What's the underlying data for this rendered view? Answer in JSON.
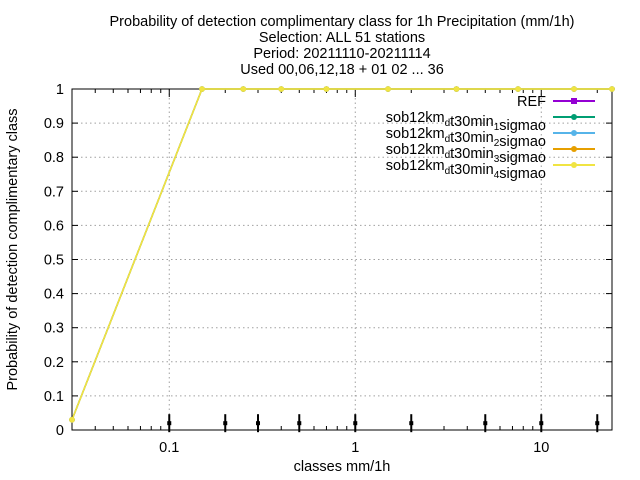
{
  "title_lines": [
    "Probability of detection complimentary class  for 1h Precipitation (mm/1h)",
    "Selection: ALL     51 stations",
    "Period: 20211110-20211114",
    "Used 00,06,12,18 + 01 02 ... 36"
  ],
  "chart_data": {
    "type": "line",
    "xlabel": "classes mm/1h",
    "ylabel": "Probability of detection complimentary class",
    "x_scale": "log",
    "xlim": [
      0.03,
      24
    ],
    "ylim": [
      0,
      1
    ],
    "grid": true,
    "legend_position": "top-right",
    "x_tick_labels": [
      {
        "value": 0.1,
        "label": "0.1"
      },
      {
        "value": 1,
        "label": "1"
      },
      {
        "value": 10,
        "label": "10"
      }
    ],
    "y_tick_labels": [
      "0",
      "0.1",
      "0.2",
      "0.3",
      "0.4",
      "0.5",
      "0.6",
      "0.7",
      "0.8",
      "0.9",
      "1"
    ],
    "y_ticks": [
      0,
      0.1,
      0.2,
      0.3,
      0.4,
      0.5,
      0.6,
      0.7,
      0.8,
      0.9,
      1
    ],
    "series": [
      {
        "name": "REF",
        "name_parts": [
          [
            "REF",
            ""
          ]
        ],
        "color": "#9400d3",
        "marker": "square",
        "x": [],
        "y": []
      },
      {
        "name": "sob12km_dt30min_1sigmao",
        "name_parts": [
          [
            "sob12km",
            ""
          ],
          [
            "d",
            "sub"
          ],
          [
            "t30min",
            ""
          ],
          [
            "1",
            "sub"
          ],
          [
            "sigmao",
            ""
          ]
        ],
        "color": "#009e73",
        "marker": "circle",
        "x": [
          0.03,
          0.15,
          0.25,
          0.4,
          0.7,
          1.5,
          3.5,
          7.5,
          15,
          24
        ],
        "y": [
          0.03,
          1,
          1,
          1,
          1,
          1,
          1,
          1,
          1,
          1
        ]
      },
      {
        "name": "sob12km_dt30min_2sigmao",
        "name_parts": [
          [
            "sob12km",
            ""
          ],
          [
            "d",
            "sub"
          ],
          [
            "t30min",
            ""
          ],
          [
            "2",
            "sub"
          ],
          [
            "sigmao",
            ""
          ]
        ],
        "color": "#56b4e9",
        "marker": "circle",
        "x": [
          0.03,
          0.15,
          0.25,
          0.4,
          0.7,
          1.5,
          3.5,
          7.5,
          15,
          24
        ],
        "y": [
          0.03,
          1,
          1,
          1,
          1,
          1,
          1,
          1,
          1,
          1
        ]
      },
      {
        "name": "sob12km_dt30min_3sigmao",
        "name_parts": [
          [
            "sob12km",
            ""
          ],
          [
            "d",
            "sub"
          ],
          [
            "t30min",
            ""
          ],
          [
            "3",
            "sub"
          ],
          [
            "sigmao",
            ""
          ]
        ],
        "color": "#e69f00",
        "marker": "circle",
        "x": [
          0.03,
          0.15,
          0.25,
          0.4,
          0.7,
          1.5,
          3.5,
          7.5,
          15,
          24
        ],
        "y": [
          0.03,
          1,
          1,
          1,
          1,
          1,
          1,
          1,
          1,
          1
        ]
      },
      {
        "name": "sob12km_dt30min_4sigmao",
        "name_parts": [
          [
            "sob12km",
            ""
          ],
          [
            "d",
            "sub"
          ],
          [
            "t30min",
            ""
          ],
          [
            "4",
            "sub"
          ],
          [
            "sigmao",
            ""
          ]
        ],
        "color": "#f0e442",
        "marker": "circle",
        "x": [
          0.03,
          0.15,
          0.25,
          0.4,
          0.7,
          1.5,
          3.5,
          7.5,
          15,
          24
        ],
        "y": [
          0.03,
          1,
          1,
          1,
          1,
          1,
          1,
          1,
          1,
          1
        ]
      }
    ],
    "class_markers_x": [
      0.1,
      0.2,
      0.3,
      0.5,
      1,
      2,
      5,
      10,
      20
    ]
  }
}
